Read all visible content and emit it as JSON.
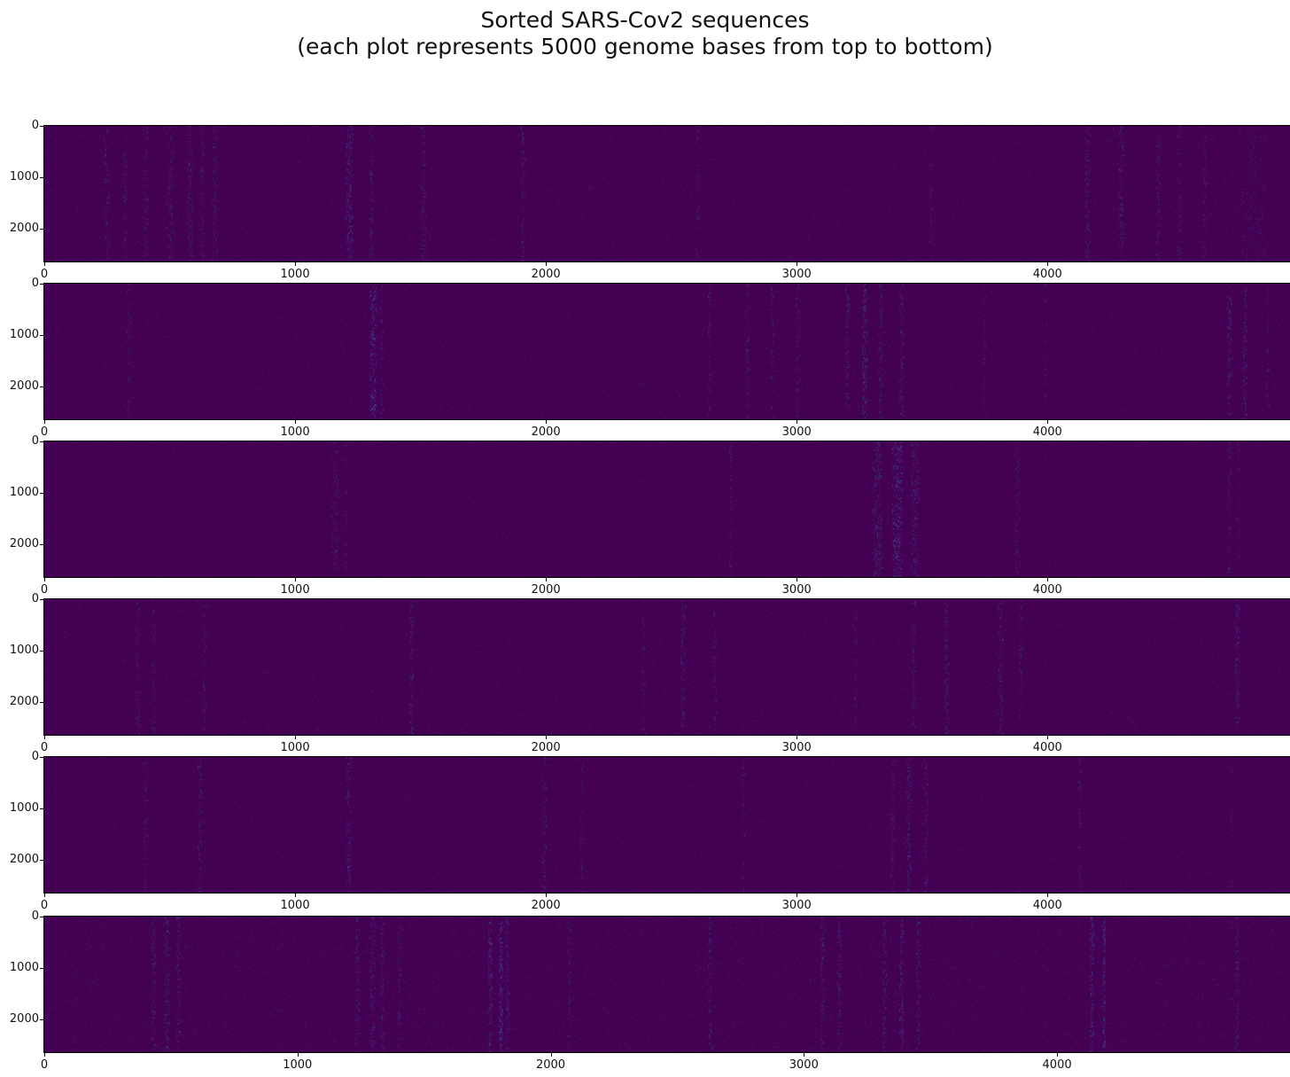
{
  "title": {
    "line1": "Sorted SARS-Cov2 sequences",
    "line2": "(each plot represents 5000 genome bases from top to bottom)"
  },
  "colors": {
    "figure_background": "#ffffff",
    "heatmap_base": "#440154",
    "streak_palette": [
      "#46327e",
      "#424086",
      "#3d4e8a",
      "#365c8d"
    ],
    "axis_line": "#000000",
    "tick_label": "#111111"
  },
  "chart_data": {
    "type": "heatmap",
    "title": "Sorted SARS-Cov2 sequences",
    "subtitle": "(each plot represents 5000 genome bases from top to bottom)",
    "description": "Six stacked imshow-style heatmaps (viridis colormap, mostly at the dark-purple minimum). Rows = ~2640 sorted SARS-CoV-2 sequences, columns = genome base positions. Lighter speckled vertical streaks mark variable genome positions.",
    "legend": "none",
    "grid": false,
    "panels": [
      {
        "x_ticks": [
          0,
          1000,
          2000,
          3000,
          4000
        ],
        "y_ticks": [
          0,
          1000,
          2000
        ],
        "xlim": [
          0,
          4967
        ],
        "ylim_rows": [
          0,
          2640
        ],
        "noise": 0.035,
        "streaks": [
          [
            247,
            25,
            0.3
          ],
          [
            321,
            20,
            0.28
          ],
          [
            403,
            25,
            0.3
          ],
          [
            502,
            30,
            0.32
          ],
          [
            579,
            25,
            0.35
          ],
          [
            629,
            20,
            0.3
          ],
          [
            678,
            25,
            0.32
          ],
          [
            1215,
            30,
            0.5
          ],
          [
            1303,
            20,
            0.35
          ],
          [
            1512,
            22,
            0.38
          ],
          [
            1907,
            18,
            0.35
          ],
          [
            2604,
            15,
            0.28
          ],
          [
            3533,
            14,
            0.25
          ],
          [
            4158,
            25,
            0.35
          ],
          [
            4292,
            22,
            0.38
          ],
          [
            4440,
            20,
            0.35
          ],
          [
            4525,
            18,
            0.32
          ],
          [
            4624,
            20,
            0.3
          ],
          [
            4820,
            120,
            0.16
          ]
        ]
      },
      {
        "x_ticks": [
          0,
          1000,
          2000,
          3000,
          4000
        ],
        "y_ticks": [
          0,
          1000,
          2000
        ],
        "xlim": [
          0,
          4967
        ],
        "ylim_rows": [
          0,
          2640
        ],
        "noise": 0.03,
        "streaks": [
          [
            336,
            18,
            0.25
          ],
          [
            1310,
            30,
            0.55
          ],
          [
            1345,
            15,
            0.35
          ],
          [
            2650,
            15,
            0.3
          ],
          [
            2803,
            18,
            0.35
          ],
          [
            2901,
            15,
            0.3
          ],
          [
            3003,
            16,
            0.35
          ],
          [
            3201,
            20,
            0.4
          ],
          [
            3269,
            22,
            0.6
          ],
          [
            3333,
            18,
            0.4
          ],
          [
            3417,
            20,
            0.4
          ],
          [
            3746,
            15,
            0.28
          ],
          [
            3993,
            12,
            0.22
          ],
          [
            4724,
            20,
            0.4
          ],
          [
            4787,
            18,
            0.42
          ],
          [
            4876,
            15,
            0.25
          ]
        ]
      },
      {
        "x_ticks": [
          0,
          1000,
          2000,
          3000,
          4000
        ],
        "y_ticks": [
          0,
          1000,
          2000
        ],
        "xlim": [
          0,
          4967
        ],
        "ylim_rows": [
          0,
          2640
        ],
        "noise": 0.02,
        "streaks": [
          [
            1159,
            30,
            0.32
          ],
          [
            1200,
            15,
            0.25
          ],
          [
            2735,
            14,
            0.35
          ],
          [
            3320,
            40,
            0.45
          ],
          [
            3400,
            45,
            0.55
          ],
          [
            3470,
            35,
            0.4
          ],
          [
            3880,
            25,
            0.28
          ],
          [
            4724,
            18,
            0.3
          ],
          [
            4760,
            12,
            0.25
          ]
        ]
      },
      {
        "x_ticks": [
          0,
          1000,
          2000,
          3000,
          4000
        ],
        "y_ticks": [
          0,
          1000,
          2000
        ],
        "xlim": [
          0,
          4967
        ],
        "ylim_rows": [
          0,
          2640
        ],
        "noise": 0.035,
        "streaks": [
          [
            371,
            18,
            0.28
          ],
          [
            435,
            16,
            0.28
          ],
          [
            636,
            18,
            0.32
          ],
          [
            1463,
            18,
            0.42
          ],
          [
            2388,
            20,
            0.28
          ],
          [
            2544,
            22,
            0.38
          ],
          [
            2671,
            18,
            0.32
          ],
          [
            3233,
            15,
            0.28
          ],
          [
            3466,
            18,
            0.38
          ],
          [
            3596,
            20,
            0.4
          ],
          [
            3812,
            22,
            0.38
          ],
          [
            3893,
            16,
            0.32
          ],
          [
            4756,
            20,
            0.42
          ]
        ]
      },
      {
        "x_ticks": [
          0,
          1000,
          2000,
          3000,
          4000
        ],
        "y_ticks": [
          0,
          1000,
          2000
        ],
        "xlim": [
          0,
          4967
        ],
        "ylim_rows": [
          0,
          2640
        ],
        "noise": 0.03,
        "streaks": [
          [
            403,
            18,
            0.32
          ],
          [
            618,
            20,
            0.38
          ],
          [
            1212,
            22,
            0.42
          ],
          [
            1993,
            18,
            0.38
          ],
          [
            2141,
            14,
            0.28
          ],
          [
            2784,
            14,
            0.28
          ],
          [
            3381,
            18,
            0.38
          ],
          [
            3445,
            20,
            0.48
          ],
          [
            3515,
            16,
            0.38
          ],
          [
            4127,
            15,
            0.28
          ],
          [
            4734,
            12,
            0.22
          ]
        ]
      },
      {
        "x_ticks": [
          0,
          1000,
          2000,
          3000,
          4000
        ],
        "y_ticks": [
          0,
          1000,
          2000
        ],
        "xlim": [
          0,
          4920
        ],
        "ylim_rows": [
          0,
          2640
        ],
        "noise": 0.06,
        "streaks": [
          [
            430,
            20,
            0.38
          ],
          [
            483,
            22,
            0.42
          ],
          [
            528,
            18,
            0.38
          ],
          [
            1235,
            20,
            0.38
          ],
          [
            1295,
            22,
            0.42
          ],
          [
            1333,
            18,
            0.38
          ],
          [
            1400,
            16,
            0.32
          ],
          [
            1760,
            18,
            0.55
          ],
          [
            1802,
            16,
            0.72
          ],
          [
            1827,
            15,
            0.5
          ],
          [
            2072,
            14,
            0.32
          ],
          [
            2628,
            16,
            0.38
          ],
          [
            3072,
            18,
            0.42
          ],
          [
            3139,
            16,
            0.38
          ],
          [
            3317,
            18,
            0.42
          ],
          [
            3384,
            20,
            0.48
          ],
          [
            3450,
            18,
            0.42
          ],
          [
            4136,
            18,
            0.6
          ],
          [
            4185,
            14,
            0.7
          ],
          [
            4710,
            16,
            0.38
          ]
        ]
      }
    ]
  }
}
